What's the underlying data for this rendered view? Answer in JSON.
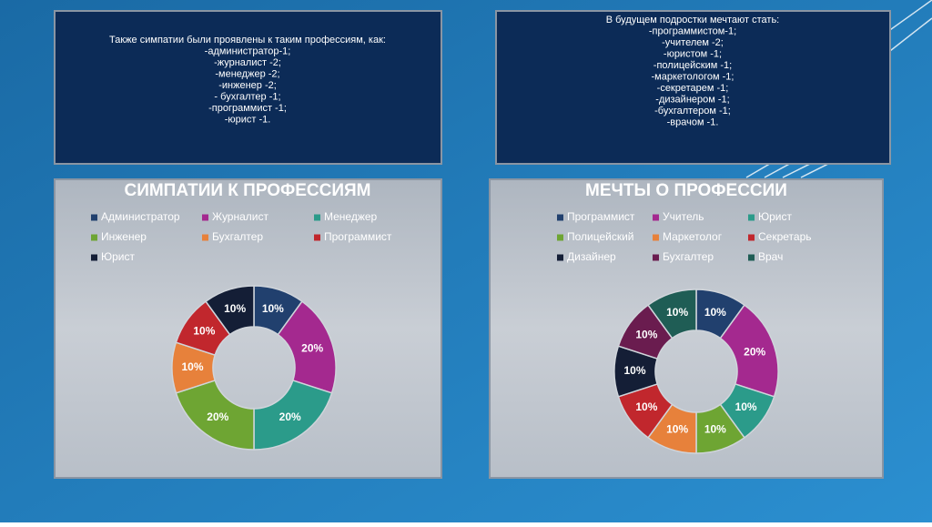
{
  "left_box": {
    "lines": [
      "Также симпатии были проявлены к таким профессиям, как:",
      "-администратор-1;",
      "-журналист -2;",
      "-менеджер -2;",
      "-инженер -2;",
      "- бухгалтер -1;",
      "-программист -1;",
      "-юрист -1."
    ]
  },
  "right_box": {
    "lines": [
      "В будущем подростки мечтают стать:",
      "-программистом-1;",
      "-учителем -2;",
      "-юристом -1;",
      "-полицейским -1;",
      "-маркетологом -1;",
      "-секретарем -1;",
      "-дизайнером -1;",
      "-бухгалтером -1;",
      "-врачом -1."
    ]
  },
  "chart_data": [
    {
      "type": "donut",
      "title": "СИМПАТИИ К ПРОФЕССИЯМ",
      "categories": [
        "Администратор",
        "Журналист",
        "Менеджер",
        "Инженер",
        "Бухгалтер",
        "Программист",
        "Юрист"
      ],
      "values": [
        10,
        20,
        20,
        20,
        10,
        10,
        10
      ],
      "value_labels": [
        "10%",
        "20%",
        "20%",
        "20%",
        "10%",
        "10%",
        "10%"
      ],
      "colors": [
        "#21406e",
        "#a4298f",
        "#2b9b8a",
        "#6ea533",
        "#e7813b",
        "#c1272d",
        "#141e36"
      ]
    },
    {
      "type": "donut",
      "title": "МЕЧТЫ О ПРОФЕССИИ",
      "categories": [
        "Программист",
        "Учитель",
        "Юрист",
        "Полицейский",
        "Маркетолог",
        "Секретарь",
        "Дизайнер",
        "Бухгалтер",
        "Врач"
      ],
      "values": [
        10,
        20,
        10,
        10,
        10,
        10,
        10,
        10,
        10
      ],
      "value_labels": [
        "10%",
        "20%",
        "10%",
        "10%",
        "10%",
        "10%",
        "10%",
        "10%",
        "10%"
      ],
      "colors": [
        "#21406e",
        "#a4298f",
        "#2b9b8a",
        "#6ea533",
        "#e7813b",
        "#c1272d",
        "#141e36",
        "#6a1c4f",
        "#1f5d55"
      ]
    }
  ]
}
